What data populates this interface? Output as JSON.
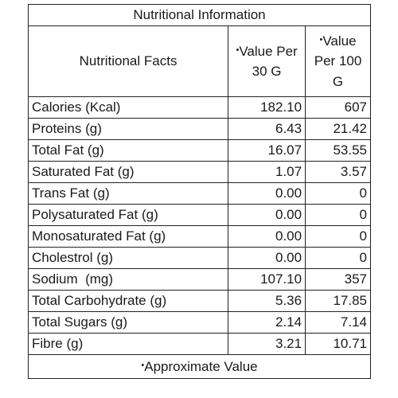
{
  "title": "Nutritional Information",
  "headers": {
    "facts": "Nutritional Facts",
    "per_30_star": "•",
    "per_30": "Value Per 30 G",
    "per_100_star": "•",
    "per_100": "Value Per 100 G"
  },
  "rows": [
    {
      "name": "Calories (Kcal)",
      "per_30": "182.10",
      "per_100": "607"
    },
    {
      "name": "Proteins (g)",
      "per_30": "6.43",
      "per_100": "21.42"
    },
    {
      "name": "Total Fat (g)",
      "per_30": "16.07",
      "per_100": "53.55"
    },
    {
      "name": "Saturated Fat (g)",
      "per_30": "1.07",
      "per_100": "3.57"
    },
    {
      "name": "Trans Fat (g)",
      "per_30": "0.00",
      "per_100": "0"
    },
    {
      "name": "Polysaturated Fat (g)",
      "per_30": "0.00",
      "per_100": "0"
    },
    {
      "name": "Monosaturated Fat (g)",
      "per_30": "0.00",
      "per_100": "0"
    },
    {
      "name": "Cholestrol (g)",
      "per_30": "0.00",
      "per_100": "0"
    },
    {
      "name": "Sodium  (mg)",
      "per_30": "107.10",
      "per_100": "357"
    },
    {
      "name": "Total Carbohydrate (g)",
      "per_30": "5.36",
      "per_100": "17.85"
    },
    {
      "name": "Total Sugars (g)",
      "per_30": "2.14",
      "per_100": "7.14"
    },
    {
      "name": "Fibre (g)",
      "per_30": "3.21",
      "per_100": "10.71"
    }
  ],
  "footer": {
    "star": "•",
    "text": "Approximate Value"
  }
}
